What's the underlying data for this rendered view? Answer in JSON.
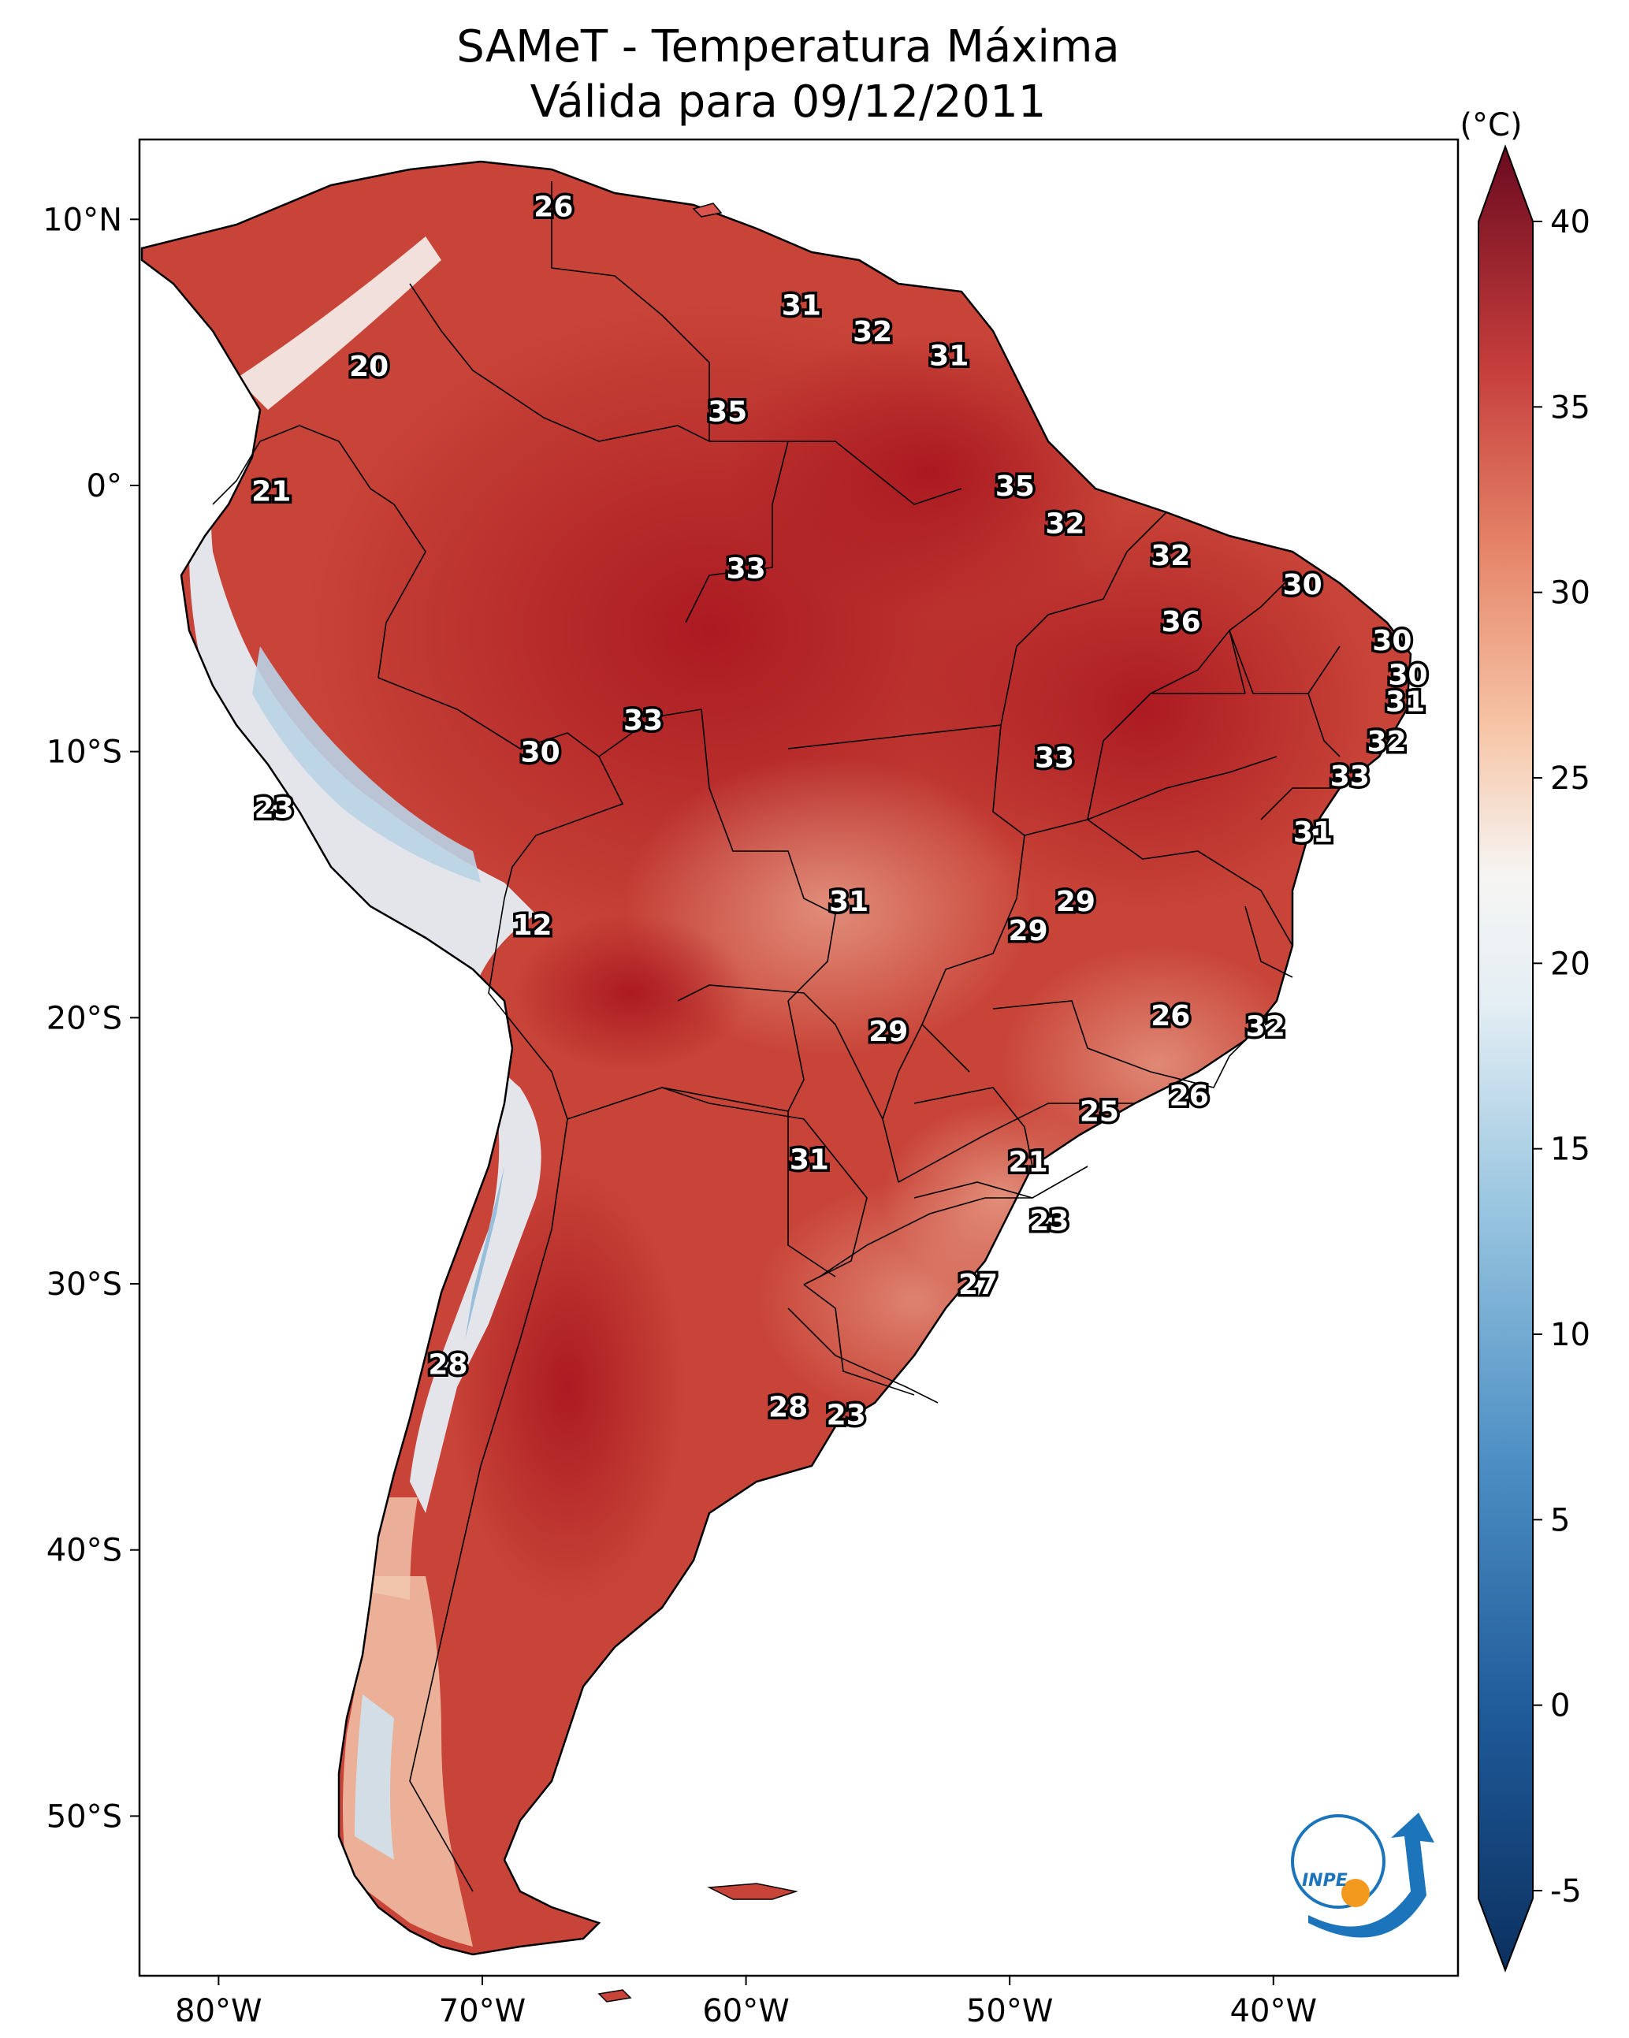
{
  "title": {
    "line1": "SAMeT - Temperatura Máxima",
    "line2": "Válida para 09/12/2011"
  },
  "map": {
    "extent": {
      "lon": [
        -83,
        -33
      ],
      "lat": [
        -56,
        13
      ]
    },
    "lon_ticks": [
      {
        "value": -80,
        "label": "80°W"
      },
      {
        "value": -70,
        "label": "70°W"
      },
      {
        "value": -60,
        "label": "60°W"
      },
      {
        "value": -50,
        "label": "50°W"
      },
      {
        "value": -40,
        "label": "40°W"
      }
    ],
    "lat_ticks": [
      {
        "value": 10,
        "label": "10°N"
      },
      {
        "value": 0,
        "label": "0°"
      },
      {
        "value": -10,
        "label": "10°S"
      },
      {
        "value": -20,
        "label": "20°S"
      },
      {
        "value": -30,
        "label": "30°S"
      },
      {
        "value": -40,
        "label": "40°S"
      },
      {
        "value": -50,
        "label": "50°S"
      }
    ]
  },
  "colorbar": {
    "unit": "(°C)",
    "range": [
      -7,
      40
    ],
    "ticks": [
      -5,
      0,
      5,
      10,
      15,
      20,
      25,
      30,
      35,
      40
    ],
    "tick_labels": [
      "-5",
      "0",
      "5",
      "10",
      "15",
      "20",
      "25",
      "30",
      "35",
      "40"
    ],
    "colormap": [
      "#0b305f",
      "#2c6fae",
      "#6ba7d0",
      "#b6d6e8",
      "#f6f5f3",
      "#f7c2a4",
      "#e17a62",
      "#c0393a",
      "#6a0a1f"
    ]
  },
  "stations": [
    {
      "lon": -67.3,
      "lat": 10.5,
      "value": "26"
    },
    {
      "lon": -74.3,
      "lat": 4.5,
      "value": "20"
    },
    {
      "lon": -78.0,
      "lat": -0.2,
      "value": "21"
    },
    {
      "lon": -77.9,
      "lat": -12.1,
      "value": "23"
    },
    {
      "lon": -57.9,
      "lat": 6.8,
      "value": "31"
    },
    {
      "lon": -55.2,
      "lat": 5.8,
      "value": "32"
    },
    {
      "lon": -52.3,
      "lat": 4.9,
      "value": "31"
    },
    {
      "lon": -60.7,
      "lat": 2.8,
      "value": "35"
    },
    {
      "lon": -49.8,
      "lat": 0.0,
      "value": "35"
    },
    {
      "lon": -60.0,
      "lat": -3.1,
      "value": "33"
    },
    {
      "lon": -47.9,
      "lat": -1.4,
      "value": "32"
    },
    {
      "lon": -43.9,
      "lat": -2.6,
      "value": "32"
    },
    {
      "lon": -38.9,
      "lat": -3.7,
      "value": "30"
    },
    {
      "lon": -43.5,
      "lat": -5.1,
      "value": "36"
    },
    {
      "lon": -35.5,
      "lat": -5.8,
      "value": "30"
    },
    {
      "lon": -34.9,
      "lat": -7.1,
      "value": "30"
    },
    {
      "lon": -35.0,
      "lat": -8.1,
      "value": "31"
    },
    {
      "lon": -35.7,
      "lat": -9.6,
      "value": "32"
    },
    {
      "lon": -37.1,
      "lat": -10.9,
      "value": "33"
    },
    {
      "lon": -38.5,
      "lat": -13.0,
      "value": "31"
    },
    {
      "lon": -48.3,
      "lat": -10.2,
      "value": "33"
    },
    {
      "lon": -63.9,
      "lat": -8.8,
      "value": "33"
    },
    {
      "lon": -67.8,
      "lat": -10.0,
      "value": "30"
    },
    {
      "lon": -68.1,
      "lat": -16.5,
      "value": "12"
    },
    {
      "lon": -56.1,
      "lat": -15.6,
      "value": "31"
    },
    {
      "lon": -47.5,
      "lat": -15.6,
      "value": "29"
    },
    {
      "lon": -49.3,
      "lat": -16.7,
      "value": "29"
    },
    {
      "lon": -54.6,
      "lat": -20.5,
      "value": "29"
    },
    {
      "lon": -43.9,
      "lat": -19.9,
      "value": "26"
    },
    {
      "lon": -40.3,
      "lat": -20.3,
      "value": "32"
    },
    {
      "lon": -43.2,
      "lat": -22.9,
      "value": "26"
    },
    {
      "lon": -46.6,
      "lat": -23.5,
      "value": "25"
    },
    {
      "lon": -49.3,
      "lat": -25.4,
      "value": "21"
    },
    {
      "lon": -48.5,
      "lat": -27.6,
      "value": "23"
    },
    {
      "lon": -57.6,
      "lat": -25.3,
      "value": "31"
    },
    {
      "lon": -51.2,
      "lat": -30.0,
      "value": "27"
    },
    {
      "lon": -71.3,
      "lat": -33.0,
      "value": "28"
    },
    {
      "lon": -58.4,
      "lat": -34.6,
      "value": "28"
    },
    {
      "lon": -56.2,
      "lat": -34.9,
      "value": "23"
    }
  ],
  "logo": {
    "text": "INPE"
  }
}
